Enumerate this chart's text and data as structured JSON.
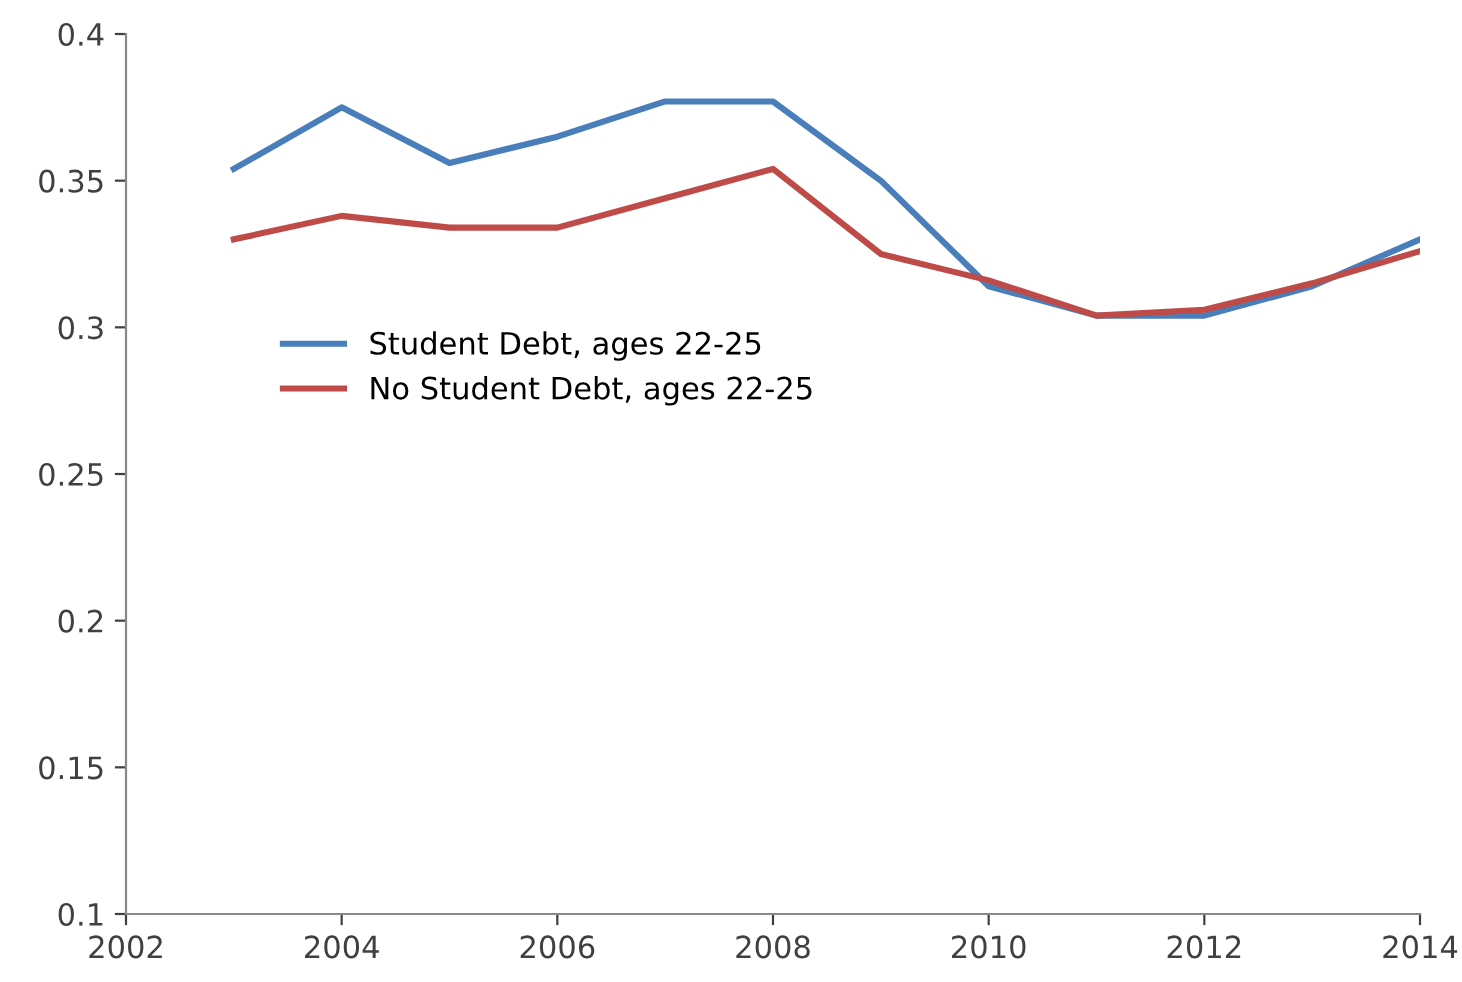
{
  "chart_data": {
    "type": "line",
    "x": [
      2003,
      2004,
      2005,
      2006,
      2007,
      2008,
      2009,
      2010,
      2011,
      2012,
      2013,
      2014
    ],
    "series": [
      {
        "name": "Student Debt, ages 22-25",
        "color": "#4a7ebb",
        "values": [
          0.354,
          0.375,
          0.356,
          0.365,
          0.377,
          0.377,
          0.35,
          0.314,
          0.304,
          0.304,
          0.314,
          0.33
        ]
      },
      {
        "name": "No Student Debt, ages 22-25",
        "color": "#be4b48",
        "values": [
          0.33,
          0.338,
          0.334,
          0.334,
          0.344,
          0.354,
          0.325,
          0.316,
          0.304,
          0.306,
          0.315,
          0.326
        ]
      }
    ],
    "xlim": [
      2002,
      2014
    ],
    "xticks": [
      2002,
      2004,
      2006,
      2008,
      2010,
      2012,
      2014
    ],
    "ylim": [
      0.1,
      0.4
    ],
    "yticks": [
      0.1,
      0.15,
      0.2,
      0.25,
      0.3,
      0.35,
      0.4
    ],
    "grid": false,
    "legend": "left",
    "marker": "none",
    "line_style": "solid"
  }
}
